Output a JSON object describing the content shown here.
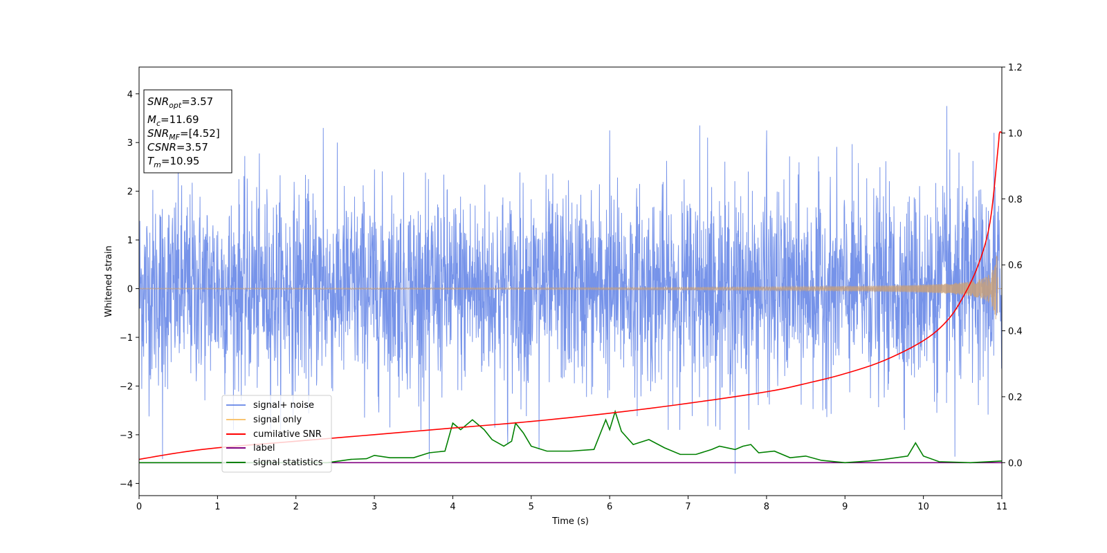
{
  "chart_data": {
    "type": "line",
    "xlabel": "Time (s)",
    "ylabel": "Whitened strain",
    "xlim": [
      0,
      11
    ],
    "ylim_left": [
      -4.25,
      4.55
    ],
    "ylim_right": [
      -0.1,
      1.2
    ],
    "x_ticks": [
      0,
      1,
      2,
      3,
      4,
      5,
      6,
      7,
      8,
      9,
      10,
      11
    ],
    "y_ticks_left": [
      -4,
      -3,
      -2,
      -1,
      0,
      1,
      2,
      3,
      4
    ],
    "y_tick_labels_left": [
      "−4",
      "−3",
      "−2",
      "−1",
      "0",
      "1",
      "2",
      "3",
      "4"
    ],
    "y_ticks_right": [
      0.0,
      0.2,
      0.4,
      0.6,
      0.8,
      1.0,
      1.2
    ],
    "y_tick_labels_right": [
      "0.0",
      "0.2",
      "0.4",
      "0.6",
      "0.8",
      "1.0",
      "1.2"
    ],
    "grid": false,
    "legend_position": "lower-left",
    "series": [
      {
        "name": "signal+ noise",
        "color": "#4169e1",
        "axis": "left",
        "kind": "noise",
        "band": [
          -2.3,
          2.6
        ],
        "peaks": [
          [
            0.3,
            -3.5
          ],
          [
            2.35,
            3.3
          ],
          [
            3.7,
            -3.5
          ],
          [
            4.7,
            -3.2
          ],
          [
            5.1,
            -3.3
          ],
          [
            6.0,
            3.25
          ],
          [
            7.15,
            3.35
          ],
          [
            7.25,
            3.1
          ],
          [
            7.6,
            -3.8
          ],
          [
            8.0,
            3.25
          ],
          [
            10.3,
            3.75
          ],
          [
            10.4,
            -3.45
          ],
          [
            10.9,
            3.2
          ]
        ]
      },
      {
        "name": "signal only",
        "color": "#c8a07a",
        "axis": "left",
        "kind": "chirp",
        "end_time": 10.95,
        "peak_amplitude": 0.68
      },
      {
        "name": "cumilative SNR",
        "color": "#ff0000",
        "axis": "right",
        "points": [
          [
            0,
            0.01
          ],
          [
            0.5,
            0.03
          ],
          [
            1,
            0.045
          ],
          [
            2,
            0.065
          ],
          [
            3,
            0.085
          ],
          [
            4,
            0.105
          ],
          [
            5,
            0.125
          ],
          [
            6,
            0.15
          ],
          [
            7,
            0.18
          ],
          [
            8,
            0.215
          ],
          [
            8.5,
            0.24
          ],
          [
            9,
            0.27
          ],
          [
            9.5,
            0.31
          ],
          [
            10,
            0.37
          ],
          [
            10.3,
            0.43
          ],
          [
            10.5,
            0.5
          ],
          [
            10.7,
            0.6
          ],
          [
            10.85,
            0.73
          ],
          [
            10.95,
            0.95
          ],
          [
            10.97,
            1.0
          ],
          [
            11.0,
            1.0
          ]
        ]
      },
      {
        "name": "label",
        "color": "#800080",
        "axis": "right",
        "points": [
          [
            0,
            0.0
          ],
          [
            11,
            0.0
          ]
        ]
      },
      {
        "name": "signal statistics",
        "color": "#008000",
        "axis": "right",
        "points": [
          [
            0,
            0.0
          ],
          [
            2.4,
            0.0
          ],
          [
            2.7,
            0.01
          ],
          [
            2.9,
            0.012
          ],
          [
            3.0,
            0.022
          ],
          [
            3.2,
            0.015
          ],
          [
            3.5,
            0.015
          ],
          [
            3.7,
            0.03
          ],
          [
            3.9,
            0.035
          ],
          [
            4.0,
            0.12
          ],
          [
            4.1,
            0.1
          ],
          [
            4.25,
            0.13
          ],
          [
            4.4,
            0.1
          ],
          [
            4.5,
            0.07
          ],
          [
            4.65,
            0.05
          ],
          [
            4.75,
            0.065
          ],
          [
            4.8,
            0.12
          ],
          [
            4.9,
            0.09
          ],
          [
            5.0,
            0.05
          ],
          [
            5.2,
            0.035
          ],
          [
            5.5,
            0.035
          ],
          [
            5.8,
            0.04
          ],
          [
            5.95,
            0.13
          ],
          [
            6.0,
            0.1
          ],
          [
            6.07,
            0.155
          ],
          [
            6.15,
            0.095
          ],
          [
            6.3,
            0.055
          ],
          [
            6.5,
            0.07
          ],
          [
            6.7,
            0.045
          ],
          [
            6.9,
            0.025
          ],
          [
            7.1,
            0.025
          ],
          [
            7.3,
            0.04
          ],
          [
            7.4,
            0.05
          ],
          [
            7.6,
            0.04
          ],
          [
            7.7,
            0.05
          ],
          [
            7.8,
            0.055
          ],
          [
            7.9,
            0.03
          ],
          [
            8.1,
            0.035
          ],
          [
            8.3,
            0.015
          ],
          [
            8.5,
            0.02
          ],
          [
            8.7,
            0.007
          ],
          [
            9.0,
            0.0
          ],
          [
            9.3,
            0.005
          ],
          [
            9.5,
            0.01
          ],
          [
            9.8,
            0.02
          ],
          [
            9.9,
            0.06
          ],
          [
            10.0,
            0.02
          ],
          [
            10.2,
            0.003
          ],
          [
            10.6,
            0.0
          ],
          [
            11.0,
            0.005
          ]
        ]
      }
    ],
    "annotation_box": {
      "snr_opt": {
        "sym": "SNR",
        "sub": "opt",
        "value": "=3.57"
      },
      "mc": {
        "sym": "M",
        "sub": "c",
        "value": "=11.69"
      },
      "snr_mf": {
        "sym": "SNR",
        "sub": "MF",
        "value": "=[4.52]"
      },
      "csnr": {
        "sym": "CSNR",
        "sub": "",
        "value": "=3.57"
      },
      "tm": {
        "sym": "T",
        "sub": "m",
        "value": "=10.95"
      }
    }
  }
}
